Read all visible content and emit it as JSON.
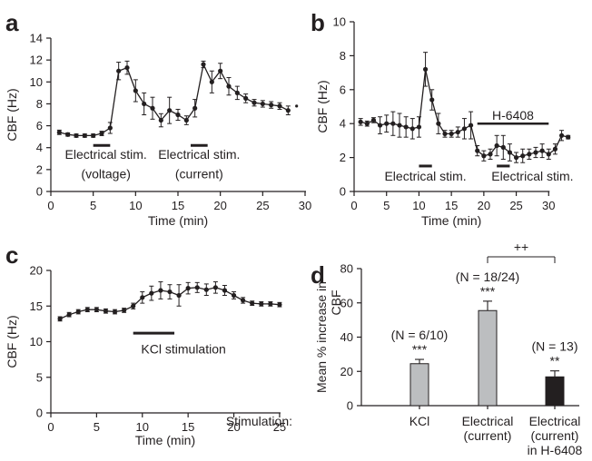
{
  "chart_data": [
    {
      "panel": "a",
      "type": "line",
      "xlabel": "Time (min)",
      "ylabel": "CBF (Hz)",
      "xlim": [
        0,
        30
      ],
      "ylim": [
        0,
        14
      ],
      "xticks": [
        0,
        5,
        10,
        15,
        20,
        25,
        30
      ],
      "yticks": [
        0,
        2,
        4,
        6,
        8,
        10,
        12,
        14
      ],
      "x": [
        1,
        2,
        3,
        4,
        5,
        6,
        7,
        8,
        9,
        10,
        11,
        12,
        13,
        14,
        15,
        16,
        17,
        18,
        19,
        20,
        21,
        22,
        23,
        24,
        25,
        26,
        27,
        28
      ],
      "y": [
        5.4,
        5.2,
        5.1,
        5.1,
        5.1,
        5.3,
        5.8,
        11.0,
        11.3,
        9.2,
        8.0,
        7.6,
        6.5,
        7.4,
        7.0,
        6.5,
        7.6,
        11.6,
        10.0,
        11.0,
        9.6,
        9.0,
        8.5,
        8.1,
        8.0,
        7.9,
        7.8,
        7.4
      ],
      "err": [
        0.2,
        0.15,
        0.15,
        0.15,
        0.15,
        0.2,
        0.5,
        0.8,
        0.6,
        1.0,
        1.0,
        1.0,
        0.6,
        1.2,
        0.5,
        0.4,
        0.8,
        0.3,
        1.0,
        0.7,
        0.8,
        0.6,
        0.4,
        0.3,
        0.3,
        0.3,
        0.3,
        0.4
      ],
      "extra_point": [
        29,
        7.8
      ],
      "stim_bars": [
        [
          5,
          7
        ],
        [
          16.5,
          18.5
        ]
      ],
      "annotations": [
        {
          "text": "Electrical stim.",
          "x": 6.5,
          "y": 3.4
        },
        {
          "text": "(voltage)",
          "x": 6.5,
          "y": 1.6
        },
        {
          "text": "Electrical stim.",
          "x": 17.5,
          "y": 3.4
        },
        {
          "text": "(current)",
          "x": 17.5,
          "y": 1.6
        }
      ]
    },
    {
      "panel": "b",
      "type": "line",
      "xlabel": "Time (min)",
      "ylabel": "CBF (Hz)",
      "xlim": [
        0,
        35
      ],
      "ylim": [
        0,
        10
      ],
      "xticks": [
        0,
        5,
        10,
        15,
        20,
        25,
        30
      ],
      "yticks": [
        0,
        2,
        4,
        6,
        8,
        10
      ],
      "x": [
        1,
        2,
        3,
        4,
        5,
        6,
        7,
        8,
        9,
        10,
        11,
        12,
        13,
        14,
        15,
        16,
        17,
        18,
        19,
        20,
        21,
        22,
        23,
        24,
        25,
        26,
        27,
        28,
        29,
        30,
        31,
        32,
        33
      ],
      "y": [
        4.1,
        4.0,
        4.2,
        3.9,
        4.0,
        4.0,
        3.9,
        3.8,
        3.7,
        3.8,
        7.2,
        5.4,
        4.0,
        3.4,
        3.4,
        3.5,
        3.7,
        3.9,
        2.4,
        2.1,
        2.2,
        2.7,
        2.6,
        2.3,
        2.0,
        2.1,
        2.2,
        2.3,
        2.4,
        2.2,
        2.5,
        3.3,
        3.2
      ],
      "err": [
        0.2,
        0.15,
        0.15,
        0.5,
        0.5,
        0.7,
        0.7,
        0.6,
        0.6,
        0.6,
        1.0,
        0.6,
        0.6,
        0.2,
        0.2,
        0.3,
        0.6,
        0.8,
        0.3,
        0.3,
        0.3,
        0.6,
        0.7,
        0.5,
        0.3,
        0.4,
        0.3,
        0.3,
        0.4,
        0.3,
        0.3,
        0.3,
        0.1
      ],
      "stim_bars": [
        [
          10,
          12
        ],
        [
          22,
          24
        ]
      ],
      "h6408_bar": [
        19,
        30
      ],
      "annotations": [
        {
          "text": "H-6408",
          "x": 24.5,
          "y": 4.5
        },
        {
          "text": "Electrical stim.",
          "x": 11,
          "y": 0.9
        },
        {
          "text": "Electrical stim.",
          "x": 27.5,
          "y": 0.9
        }
      ]
    },
    {
      "panel": "c",
      "type": "line",
      "xlabel": "Time (min)",
      "ylabel": "CBF (Hz)",
      "xlim": [
        0,
        26
      ],
      "ylim": [
        0,
        20
      ],
      "xticks": [
        0,
        5,
        10,
        15,
        20,
        25
      ],
      "yticks": [
        0,
        5,
        10,
        15,
        20
      ],
      "x": [
        1,
        2,
        3,
        4,
        5,
        6,
        7,
        8,
        9,
        10,
        11,
        12,
        13,
        14,
        15,
        16,
        17,
        18,
        19,
        20,
        21,
        22,
        23,
        24,
        25
      ],
      "y": [
        13.2,
        13.8,
        14.2,
        14.5,
        14.5,
        14.3,
        14.2,
        14.4,
        15.0,
        16.2,
        16.8,
        17.2,
        17.0,
        16.5,
        17.5,
        17.6,
        17.3,
        17.6,
        17.2,
        16.5,
        15.8,
        15.4,
        15.3,
        15.3,
        15.2
      ],
      "err": [
        0.3,
        0.3,
        0.3,
        0.3,
        0.3,
        0.3,
        0.3,
        0.3,
        0.4,
        0.8,
        1.0,
        1.2,
        1.0,
        1.5,
        0.8,
        0.7,
        0.8,
        0.8,
        0.7,
        0.5,
        0.4,
        0.3,
        0.3,
        0.3,
        0.3
      ],
      "stim_bars": [
        [
          9,
          13.5
        ]
      ],
      "annotations": [
        {
          "text": "KCl stimulation",
          "x": 14.5,
          "y": 9.0
        }
      ]
    },
    {
      "panel": "d",
      "type": "bar",
      "ylabel": "Mean % increase in CBF",
      "ylim": [
        0,
        80
      ],
      "yticks": [
        0,
        20,
        40,
        60,
        80
      ],
      "row_label": "Stimulation:",
      "categories": [
        [
          "KCl"
        ],
        [
          "Electrical",
          "(current)"
        ],
        [
          "Electrical",
          "(current)",
          "in H-6408"
        ]
      ],
      "values": [
        24.5,
        55.5,
        16.8
      ],
      "err": [
        2.5,
        5.5,
        3.5
      ],
      "colors": [
        "#bcbec0",
        "#bcbec0",
        "#231f20"
      ],
      "n_labels": [
        "(N = 6/10)",
        "(N = 18/24)",
        "(N = 13)"
      ],
      "sig_labels": [
        "***",
        "***",
        "**"
      ],
      "bracket_label": "++"
    }
  ]
}
